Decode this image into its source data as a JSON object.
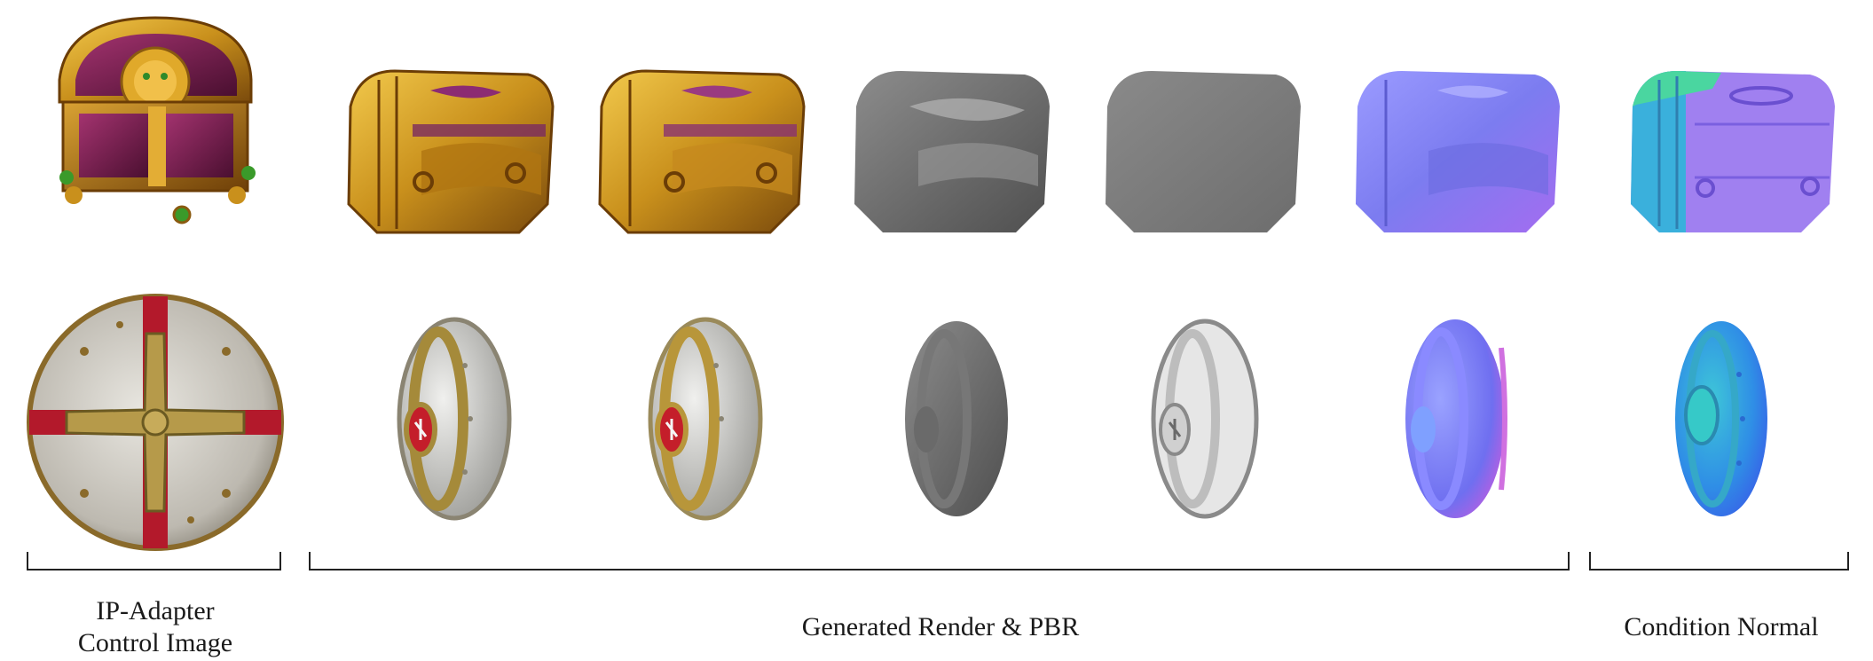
{
  "captions": {
    "ip_adapter_line1": "IP-Adapter",
    "ip_adapter_line2": "Control Image",
    "generated": "Generated Render & PBR",
    "condition": "Condition Normal"
  },
  "rows": [
    {
      "object": "treasure-chest",
      "columns": [
        "control-image",
        "render",
        "albedo",
        "roughness",
        "metallic",
        "pbr-normal",
        "condition-normal"
      ]
    },
    {
      "object": "round-shield",
      "columns": [
        "control-image",
        "render",
        "albedo",
        "roughness",
        "metallic",
        "pbr-normal",
        "condition-normal"
      ]
    }
  ],
  "colors": {
    "gold": "#c9901c",
    "purple": "#6e1f4a",
    "crimson": "#b3192b",
    "normal_blue": "#7c7cf0",
    "normal_cyan": "#2fb4d8"
  }
}
